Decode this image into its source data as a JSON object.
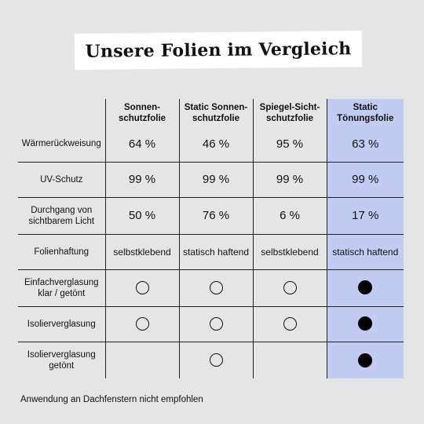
{
  "title": "Unsere Folien im Vergleich",
  "colors": {
    "background": "#e5e5e5",
    "highlight_column": "#c2ccf3",
    "text": "#111111"
  },
  "table": {
    "columns": [
      "Sonnen-\nschutzfolie",
      "Static Sonnen-\nschutzfolie",
      "Spiegel-Sicht-\nschutzfolie",
      "Static\nTönungsfolie"
    ],
    "highlighted_column_index": 3,
    "rows": [
      {
        "label": "Wärmerückweisung",
        "values": [
          "64 %",
          "46 %",
          "95 %",
          "63 %"
        ]
      },
      {
        "label": "UV-Schutz",
        "values": [
          "99 %",
          "99 %",
          "99 %",
          "99 %"
        ]
      },
      {
        "label": "Durchgang von\nsichtbarem Licht",
        "values": [
          "50 %",
          "76 %",
          "6 %",
          "17 %"
        ]
      },
      {
        "label": "Folienhaftung",
        "values": [
          "selbstklebend",
          "statisch haftend",
          "selbstklebend",
          "statisch haftend"
        ]
      },
      {
        "label": "Einfachverglasung\nklar / getönt",
        "marks": [
          "empty-circle",
          "empty-circle",
          "empty-circle",
          "filled-circle"
        ]
      },
      {
        "label": "Isolierverglasung",
        "marks": [
          "empty-circle",
          "empty-circle",
          "empty-circle",
          "filled-circle"
        ]
      },
      {
        "label": "Isolierverglasung\ngetönt",
        "marks": [
          "none",
          "empty-circle",
          "none",
          "filled-circle"
        ]
      }
    ]
  },
  "footnote": "Anwendung an Dachfenstern nicht empfohlen"
}
